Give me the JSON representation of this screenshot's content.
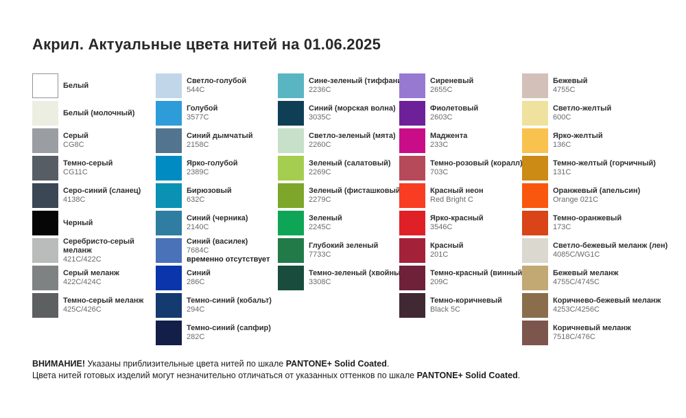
{
  "title": "Акрил. Актуальные цвета нитей на 01.06.2025",
  "columns": [
    {
      "items": [
        {
          "name": "Белый",
          "code": "",
          "color": "#ffffff",
          "border": true
        },
        {
          "name": "Белый (молочный)",
          "code": "",
          "color": "#eceee1"
        },
        {
          "name": "Серый",
          "code": "CG8C",
          "color": "#9a9ea2"
        },
        {
          "name": "Темно-серый",
          "code": "CG11C",
          "color": "#575d65"
        },
        {
          "name": "Серо-синий (сланец)",
          "code": "4138C",
          "color": "#3b4754"
        },
        {
          "name": "Черный",
          "code": "",
          "color": "#060606"
        },
        {
          "name": "Серебристо-серый\nмеланж",
          "code": "421C/422C",
          "color": "#b9bcba"
        },
        {
          "name": "Серый меланж",
          "code": "422C/424C",
          "color": "#7e8283"
        },
        {
          "name": "Темно-серый меланж",
          "code": "425C/426C",
          "color": "#5d6061"
        }
      ]
    },
    {
      "items": [
        {
          "name": "Светло-голубой",
          "code": "544C",
          "color": "#c2d6ea"
        },
        {
          "name": "Голубой",
          "code": "3577C",
          "color": "#2e9cd9"
        },
        {
          "name": "Синий дымчатый",
          "code": "2158C",
          "color": "#53748e"
        },
        {
          "name": "Ярко-голубой",
          "code": "2389C",
          "color": "#008cc2"
        },
        {
          "name": "Бирюзовый",
          "code": "632C",
          "color": "#0a92b4"
        },
        {
          "name": "Синий (черника)",
          "code": "2140C",
          "color": "#2f7ea1"
        },
        {
          "name": "Синий (василек)",
          "code": "7684C",
          "color": "#4a72b9",
          "note": "временно отсутствует"
        },
        {
          "name": "Синий",
          "code": "286C",
          "color": "#0a35ab"
        },
        {
          "name": "Темно-синий (кобальт)",
          "code": "294C",
          "color": "#143a70"
        },
        {
          "name": "Темно-синий (сапфир)",
          "code": "282C",
          "color": "#131f49"
        }
      ]
    },
    {
      "items": [
        {
          "name": "Сине-зеленый (тиффани)",
          "code": "2236C",
          "color": "#59b5c2"
        },
        {
          "name": "Синий (морская волна)",
          "code": "3035C",
          "color": "#0f3f55"
        },
        {
          "name": "Светло-зеленый (мята)",
          "code": "2260C",
          "color": "#c7e0ca"
        },
        {
          "name": "Зеленый (салатовый)",
          "code": "2269C",
          "color": "#a5cd50"
        },
        {
          "name": "Зеленый (фисташковый)",
          "code": "2279C",
          "color": "#7ea62b"
        },
        {
          "name": "Зеленый",
          "code": "2245C",
          "color": "#0fa557"
        },
        {
          "name": "Глубокий зеленый",
          "code": "7733C",
          "color": "#227a49"
        },
        {
          "name": "Темно-зеленый (хвойный)",
          "code": "3308C",
          "color": "#194c3d"
        }
      ]
    },
    {
      "items": [
        {
          "name": "Сиреневый",
          "code": "2655C",
          "color": "#9779d1"
        },
        {
          "name": "Фиолетовый",
          "code": "2603C",
          "color": "#6e2099"
        },
        {
          "name": "Маджента",
          "code": "233C",
          "color": "#c90d88"
        },
        {
          "name": "Темно-розовый (коралл)",
          "code": "703C",
          "color": "#b64a5a"
        },
        {
          "name": "Красный неон",
          "code": "Red Bright C",
          "color": "#f83d23"
        },
        {
          "name": "Ярко-красный",
          "code": "3546C",
          "color": "#df2127"
        },
        {
          "name": "Красный",
          "code": "201C",
          "color": "#a32239"
        },
        {
          "name": "Темно-красный (винный)",
          "code": "209C",
          "color": "#6f213a"
        },
        {
          "name": "Темно-коричневый",
          "code": "Black 5C",
          "color": "#402933"
        }
      ]
    },
    {
      "items": [
        {
          "name": "Бежевый",
          "code": "4755C",
          "color": "#d3c0b8"
        },
        {
          "name": "Светло-желтый",
          "code": "600C",
          "color": "#efe29e"
        },
        {
          "name": "Ярко-желтый",
          "code": "136C",
          "color": "#f9c14e"
        },
        {
          "name": "Темно-желтый (горчичный)",
          "code": "131C",
          "color": "#cc8b15"
        },
        {
          "name": "Оранжевый (апельсин)",
          "code": "Orange 021C",
          "color": "#fa570e"
        },
        {
          "name": "Темно-оранжевый",
          "code": "173C",
          "color": "#d94418"
        },
        {
          "name": "Светло-бежевый меланж (лен)",
          "code": "4085C/WG1C",
          "color": "#dbd8d0"
        },
        {
          "name": "Бежевый меланж",
          "code": "4755C/4745C",
          "color": "#c2a873"
        },
        {
          "name": "Коричнево-бежевый меланж",
          "code": "4253C/4256C",
          "color": "#8a6e4c"
        },
        {
          "name": "Коричневый меланж",
          "code": "7518C/476C",
          "color": "#7c564c"
        }
      ]
    }
  ],
  "footer": {
    "line1_attention": "ВНИМАНИЕ!",
    "line1_text": " Указаны приблизительные цвета нитей по шкале ",
    "line1_scale": "PANTONE+ Solid Coated",
    "line1_end": ".",
    "line2_text": "Цвета нитей готовых изделий могут незначительно отличаться от указанных оттенков по шкале ",
    "line2_scale": "PANTONE+ Solid Coated",
    "line2_end": "."
  }
}
